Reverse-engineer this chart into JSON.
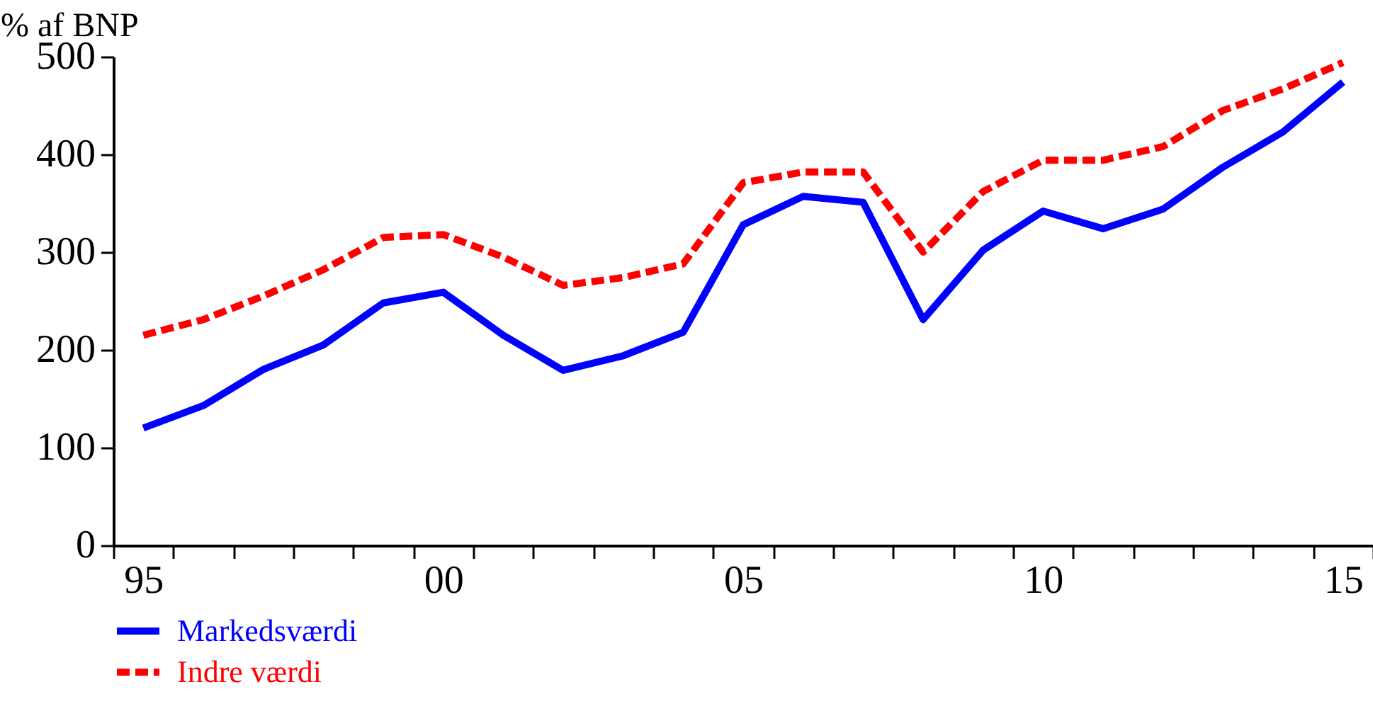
{
  "chart_data": {
    "type": "line",
    "ylabel": "% af BNP",
    "categories": [
      "95",
      null,
      null,
      null,
      null,
      "00",
      null,
      null,
      null,
      null,
      "05",
      null,
      null,
      null,
      null,
      "10",
      null,
      null,
      null,
      null,
      "15"
    ],
    "series": [
      {
        "name": "Markedsværdi",
        "color": "#0000ff",
        "line_style": "solid",
        "values": [
          120,
          143,
          180,
          205,
          248,
          259,
          215,
          179,
          194,
          218,
          328,
          357,
          351,
          231,
          302,
          342,
          324,
          344,
          387,
          423,
          474
        ]
      },
      {
        "name": "Indre værdi",
        "color": "#ff0000",
        "line_style": "dashed",
        "values": [
          215,
          231,
          255,
          282,
          315,
          318,
          295,
          266,
          274,
          288,
          371,
          382,
          382,
          300,
          362,
          394,
          394,
          408,
          445,
          467,
          494
        ]
      }
    ],
    "ylim": [
      0,
      500
    ],
    "yticks": [
      0,
      100,
      200,
      300,
      400,
      500
    ],
    "grid": false,
    "legend": "bottom left"
  }
}
